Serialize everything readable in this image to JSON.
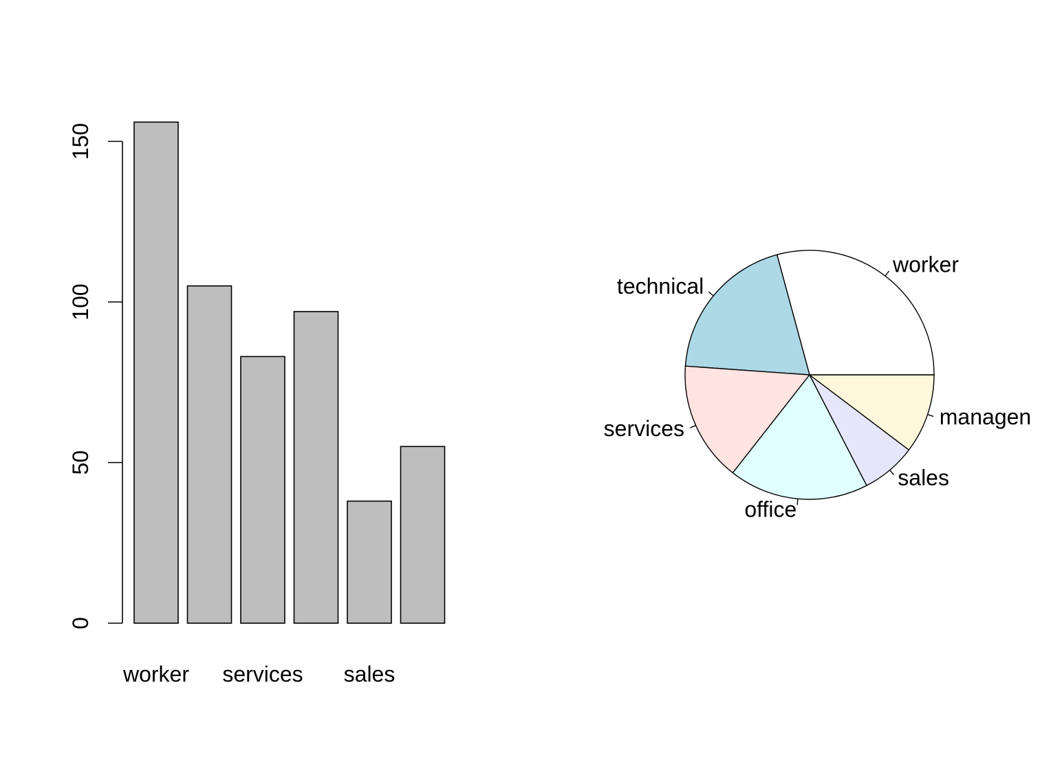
{
  "chart_data": [
    {
      "type": "bar",
      "categories": [
        "worker",
        "technical",
        "services",
        "office",
        "sales",
        "management"
      ],
      "category_labels_shown": [
        "worker",
        "",
        "services",
        "",
        "sales",
        ""
      ],
      "values": [
        156,
        105,
        83,
        97,
        38,
        55
      ],
      "ylim": [
        0,
        160
      ],
      "yticks": [
        0,
        50,
        100,
        150
      ],
      "bar_color": "#bebebe",
      "grid": false,
      "title": "",
      "xlabel": "",
      "ylabel": ""
    },
    {
      "type": "pie",
      "labels": [
        "worker",
        "technical",
        "services",
        "office",
        "sales",
        "management"
      ],
      "labels_shown": [
        "worker",
        "technical",
        "services",
        "office",
        "sales",
        "managen"
      ],
      "values": [
        156,
        105,
        83,
        97,
        38,
        55
      ],
      "colors": [
        "#ffffff",
        "#add8e6",
        "#ffe4e1",
        "#e0ffff",
        "#e6e6fa",
        "#fff8dc"
      ],
      "start": "3 o'clock",
      "direction": "counter-clockwise",
      "title": ""
    }
  ]
}
